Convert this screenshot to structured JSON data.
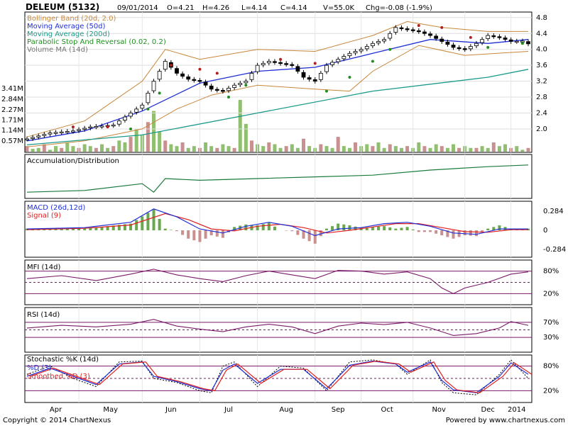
{
  "header": {
    "symbol": "DELEUM (5132)",
    "date": "09/01/2014",
    "open": "O=4.21",
    "high": "H=4.26",
    "low": "L=4.14",
    "close": "C=4.14",
    "volume": "V=55.0K",
    "change": "Chg=-0.08 (-1.9%)"
  },
  "footer": {
    "copyright": "Copyright © 2014 ChartNexus",
    "powered": "Powered by www.chartnexus.com"
  },
  "colors": {
    "price_up": "#ffffff",
    "price_down": "#000000",
    "bollinger": "#c8873a",
    "ma50": "#1f2fd6",
    "ma200": "#1a9a8a",
    "psar": "#1f8f1f",
    "psar_down": "#b02020",
    "volume_up": "#8fbf6f",
    "volume_down": "#c99090",
    "accdist": "#1a7a3a",
    "macd": "#1f2fd6",
    "signal": "#e02020",
    "histogram": "#6aa84f",
    "osc": "#7a1a6a",
    "stoch_k": "#1f2fd6",
    "stoch_d": "#e02020",
    "ref_line": "#7a1a6a"
  },
  "chart_data": [
    {
      "type": "candlestick",
      "panel": "price",
      "legend": [
        {
          "name": "Bollinger Band (20d, 2.0)",
          "color": "#c8873a"
        },
        {
          "name": "Moving Average (50d)",
          "color": "#1f2fd6"
        },
        {
          "name": "Moving Average (200d)",
          "color": "#1a9a8a"
        },
        {
          "name": "Parabolic Stop And Reversal (0.02, 0.2)",
          "color": "#1f8f1f"
        },
        {
          "name": "Volume MA (14d)",
          "color": "#777777"
        }
      ],
      "y_ticks": [
        "4.8",
        "4.4",
        "4.0",
        "3.6",
        "3.2",
        "2.8",
        "2.4",
        "2.0"
      ],
      "ylim": [
        1.5,
        4.85
      ],
      "x_months": [
        "Apr",
        "May",
        "Jun",
        "Jul",
        "Aug",
        "Sep",
        "Oct",
        "Nov",
        "Dec",
        "2014"
      ],
      "close_path": [
        [
          0,
          1.75
        ],
        [
          4,
          1.9
        ],
        [
          8,
          1.95
        ],
        [
          11,
          2.05
        ],
        [
          15,
          2.1
        ],
        [
          17,
          2.3
        ],
        [
          20,
          2.6
        ],
        [
          22,
          3.2
        ],
        [
          24,
          3.7
        ],
        [
          26,
          3.4
        ],
        [
          28,
          3.25
        ],
        [
          30,
          3.2
        ],
        [
          32,
          3.0
        ],
        [
          34,
          2.95
        ],
        [
          36,
          3.1
        ],
        [
          38,
          3.2
        ],
        [
          40,
          3.6
        ],
        [
          42,
          3.7
        ],
        [
          44,
          3.65
        ],
        [
          46,
          3.6
        ],
        [
          48,
          3.3
        ],
        [
          50,
          3.2
        ],
        [
          52,
          3.6
        ],
        [
          54,
          3.75
        ],
        [
          56,
          3.9
        ],
        [
          58,
          4.0
        ],
        [
          60,
          4.15
        ],
        [
          62,
          4.25
        ],
        [
          64,
          4.55
        ],
        [
          66,
          4.5
        ],
        [
          68,
          4.45
        ],
        [
          70,
          4.35
        ],
        [
          72,
          4.2
        ],
        [
          74,
          4.05
        ],
        [
          76,
          4.0
        ],
        [
          78,
          4.15
        ],
        [
          80,
          4.35
        ],
        [
          82,
          4.3
        ],
        [
          84,
          4.2
        ],
        [
          86,
          4.21
        ],
        [
          87,
          4.14
        ]
      ],
      "ma50_path": [
        [
          0,
          1.7
        ],
        [
          10,
          1.95
        ],
        [
          20,
          2.45
        ],
        [
          30,
          3.15
        ],
        [
          40,
          3.45
        ],
        [
          50,
          3.55
        ],
        [
          60,
          3.9
        ],
        [
          70,
          4.25
        ],
        [
          80,
          4.15
        ],
        [
          87,
          4.25
        ]
      ],
      "ma200_path": [
        [
          0,
          1.6
        ],
        [
          20,
          1.85
        ],
        [
          40,
          2.4
        ],
        [
          60,
          2.95
        ],
        [
          80,
          3.3
        ],
        [
          87,
          3.5
        ]
      ],
      "bb_upper_path": [
        [
          0,
          1.8
        ],
        [
          10,
          2.2
        ],
        [
          20,
          3.2
        ],
        [
          24,
          4.0
        ],
        [
          30,
          3.75
        ],
        [
          40,
          4.0
        ],
        [
          50,
          3.95
        ],
        [
          60,
          4.35
        ],
        [
          66,
          4.7
        ],
        [
          72,
          4.55
        ],
        [
          80,
          4.45
        ],
        [
          87,
          4.45
        ]
      ],
      "bb_lower_path": [
        [
          0,
          1.55
        ],
        [
          10,
          1.7
        ],
        [
          20,
          2.0
        ],
        [
          26,
          2.5
        ],
        [
          32,
          2.85
        ],
        [
          40,
          3.1
        ],
        [
          50,
          3.0
        ],
        [
          56,
          2.95
        ],
        [
          60,
          3.45
        ],
        [
          68,
          4.1
        ],
        [
          76,
          3.85
        ],
        [
          87,
          3.95
        ]
      ],
      "psar_up": [
        [
          18,
          2.0
        ],
        [
          21,
          2.5
        ],
        [
          23,
          2.9
        ],
        [
          35,
          2.8
        ],
        [
          38,
          3.1
        ],
        [
          52,
          2.95
        ],
        [
          56,
          3.3
        ],
        [
          60,
          3.7
        ],
        [
          63,
          4.0
        ],
        [
          80,
          4.05
        ],
        [
          86,
          4.15
        ]
      ],
      "psar_down": [
        [
          8,
          2.05
        ],
        [
          14,
          2.05
        ],
        [
          25,
          3.6
        ],
        [
          30,
          3.5
        ],
        [
          33,
          3.4
        ],
        [
          44,
          3.75
        ],
        [
          50,
          3.65
        ],
        [
          68,
          4.6
        ],
        [
          72,
          4.55
        ],
        [
          77,
          4.3
        ]
      ]
    },
    {
      "type": "bar",
      "panel": "volume",
      "y_ticks": [
        "3.41M",
        "2.84M",
        "2.27M",
        "1.71M",
        "1.14M",
        "0.57M"
      ],
      "ylim": [
        0,
        3.41
      ],
      "values": [
        0.3,
        0.15,
        0.2,
        0.4,
        0.1,
        0.3,
        0.2,
        0.5,
        0.3,
        0.2,
        0.4,
        0.3,
        0.2,
        0.4,
        0.2,
        0.3,
        0.6,
        0.5,
        0.8,
        1.2,
        0.9,
        1.6,
        2.2,
        1.1,
        0.6,
        0.4,
        0.3,
        0.5,
        0.2,
        0.3,
        0.2,
        0.5,
        0.3,
        0.2,
        0.4,
        0.3,
        0.2,
        2.8,
        1.5,
        0.6,
        0.4,
        0.3,
        0.5,
        0.4,
        0.2,
        0.3,
        0.4,
        0.2,
        0.7,
        0.3,
        0.2,
        0.4,
        0.3,
        0.2,
        0.8,
        0.3,
        0.2,
        0.5,
        0.3,
        0.4,
        0.3,
        0.5,
        0.2,
        0.4,
        0.3,
        0.2,
        0.3,
        0.2,
        0.5,
        0.3,
        0.2,
        0.4,
        0.3,
        0.2,
        0.4,
        0.2,
        0.3,
        0.2,
        0.2,
        0.3,
        0.2,
        0.5,
        0.3,
        0.4,
        0.2,
        0.3,
        0.1,
        0.2
      ]
    },
    {
      "type": "line",
      "panel": "accumulation_distribution",
      "title": "Accumulation/Distribution",
      "path": [
        [
          0,
          0.1
        ],
        [
          10,
          0.15
        ],
        [
          20,
          0.35
        ],
        [
          22,
          0.1
        ],
        [
          24,
          0.5
        ],
        [
          30,
          0.45
        ],
        [
          40,
          0.5
        ],
        [
          50,
          0.55
        ],
        [
          60,
          0.6
        ],
        [
          70,
          0.75
        ],
        [
          80,
          0.85
        ],
        [
          87,
          0.9
        ]
      ]
    },
    {
      "type": "line",
      "panel": "macd",
      "legend": [
        {
          "name": "MACD (26d,12d)",
          "color": "#1f2fd6"
        },
        {
          "name": "Signal (9)",
          "color": "#e02020"
        }
      ],
      "y_ticks": [
        "0.284",
        "0",
        "-0.284"
      ],
      "ylim": [
        -0.35,
        0.35
      ],
      "macd": [
        [
          0,
          0.02
        ],
        [
          10,
          0.04
        ],
        [
          18,
          0.12
        ],
        [
          22,
          0.32
        ],
        [
          26,
          0.2
        ],
        [
          30,
          0.02
        ],
        [
          34,
          -0.04
        ],
        [
          38,
          0.06
        ],
        [
          42,
          0.12
        ],
        [
          46,
          0.06
        ],
        [
          50,
          -0.08
        ],
        [
          54,
          0.02
        ],
        [
          58,
          0.04
        ],
        [
          62,
          0.1
        ],
        [
          66,
          0.12
        ],
        [
          70,
          0.06
        ],
        [
          74,
          -0.04
        ],
        [
          78,
          -0.06
        ],
        [
          82,
          0.02
        ],
        [
          87,
          0.02
        ]
      ],
      "signal": [
        [
          0,
          0.01
        ],
        [
          10,
          0.03
        ],
        [
          18,
          0.08
        ],
        [
          24,
          0.25
        ],
        [
          28,
          0.16
        ],
        [
          32,
          0.02
        ],
        [
          36,
          -0.01
        ],
        [
          40,
          0.06
        ],
        [
          44,
          0.09
        ],
        [
          48,
          0.04
        ],
        [
          52,
          -0.04
        ],
        [
          56,
          0.0
        ],
        [
          60,
          0.05
        ],
        [
          64,
          0.1
        ],
        [
          68,
          0.1
        ],
        [
          72,
          0.04
        ],
        [
          76,
          -0.02
        ],
        [
          80,
          -0.03
        ],
        [
          84,
          0.01
        ],
        [
          87,
          0.01
        ]
      ]
    },
    {
      "type": "line",
      "panel": "mfi",
      "title": "MFI (14d)",
      "y_ticks": [
        "80%",
        "20%"
      ],
      "ylim": [
        0,
        100
      ],
      "ref_lines": [
        80,
        20
      ],
      "values": [
        [
          0,
          60
        ],
        [
          6,
          68
        ],
        [
          12,
          55
        ],
        [
          18,
          72
        ],
        [
          22,
          85
        ],
        [
          26,
          70
        ],
        [
          30,
          60
        ],
        [
          34,
          52
        ],
        [
          38,
          68
        ],
        [
          42,
          80
        ],
        [
          46,
          70
        ],
        [
          50,
          60
        ],
        [
          54,
          82
        ],
        [
          58,
          80
        ],
        [
          62,
          72
        ],
        [
          66,
          78
        ],
        [
          70,
          60
        ],
        [
          72,
          35
        ],
        [
          74,
          20
        ],
        [
          76,
          35
        ],
        [
          80,
          50
        ],
        [
          84,
          72
        ],
        [
          87,
          78
        ]
      ]
    },
    {
      "type": "line",
      "panel": "rsi",
      "title": "RSI (14d)",
      "y_ticks": [
        "70%",
        "30%"
      ],
      "ylim": [
        0,
        100
      ],
      "ref_lines": [
        70,
        30
      ],
      "values": [
        [
          0,
          55
        ],
        [
          6,
          62
        ],
        [
          12,
          58
        ],
        [
          18,
          65
        ],
        [
          22,
          78
        ],
        [
          26,
          60
        ],
        [
          30,
          52
        ],
        [
          34,
          45
        ],
        [
          38,
          58
        ],
        [
          42,
          65
        ],
        [
          46,
          58
        ],
        [
          50,
          40
        ],
        [
          54,
          60
        ],
        [
          58,
          68
        ],
        [
          62,
          64
        ],
        [
          66,
          70
        ],
        [
          70,
          55
        ],
        [
          74,
          35
        ],
        [
          78,
          40
        ],
        [
          82,
          55
        ],
        [
          84,
          72
        ],
        [
          87,
          62
        ]
      ]
    },
    {
      "type": "line",
      "panel": "stochastic",
      "legend": [
        {
          "name": "Stochastic %K (14d)",
          "color": "#000000"
        },
        {
          "name": "%D (3)",
          "color": "#1f2fd6"
        },
        {
          "name": "Smoothed %D (3)",
          "color": "#e02020"
        }
      ],
      "y_ticks": [
        "80%",
        "20%"
      ],
      "ylim": [
        0,
        100
      ],
      "ref_lines": [
        80,
        20
      ],
      "k": [
        [
          0,
          60
        ],
        [
          4,
          80
        ],
        [
          8,
          50
        ],
        [
          12,
          30
        ],
        [
          16,
          90
        ],
        [
          20,
          92
        ],
        [
          22,
          50
        ],
        [
          26,
          40
        ],
        [
          30,
          20
        ],
        [
          32,
          15
        ],
        [
          34,
          80
        ],
        [
          36,
          90
        ],
        [
          40,
          30
        ],
        [
          44,
          80
        ],
        [
          48,
          75
        ],
        [
          52,
          20
        ],
        [
          56,
          90
        ],
        [
          60,
          95
        ],
        [
          64,
          85
        ],
        [
          66,
          60
        ],
        [
          70,
          95
        ],
        [
          72,
          40
        ],
        [
          74,
          15
        ],
        [
          78,
          10
        ],
        [
          82,
          60
        ],
        [
          84,
          95
        ],
        [
          87,
          50
        ]
      ],
      "d": [
        [
          0,
          55
        ],
        [
          4,
          75
        ],
        [
          8,
          55
        ],
        [
          12,
          35
        ],
        [
          16,
          85
        ],
        [
          20,
          90
        ],
        [
          22,
          55
        ],
        [
          26,
          42
        ],
        [
          30,
          25
        ],
        [
          32,
          20
        ],
        [
          34,
          70
        ],
        [
          36,
          85
        ],
        [
          40,
          38
        ],
        [
          44,
          72
        ],
        [
          48,
          72
        ],
        [
          52,
          25
        ],
        [
          56,
          82
        ],
        [
          60,
          92
        ],
        [
          64,
          85
        ],
        [
          66,
          65
        ],
        [
          70,
          90
        ],
        [
          72,
          45
        ],
        [
          74,
          22
        ],
        [
          78,
          15
        ],
        [
          82,
          55
        ],
        [
          84,
          88
        ],
        [
          87,
          60
        ]
      ]
    }
  ]
}
